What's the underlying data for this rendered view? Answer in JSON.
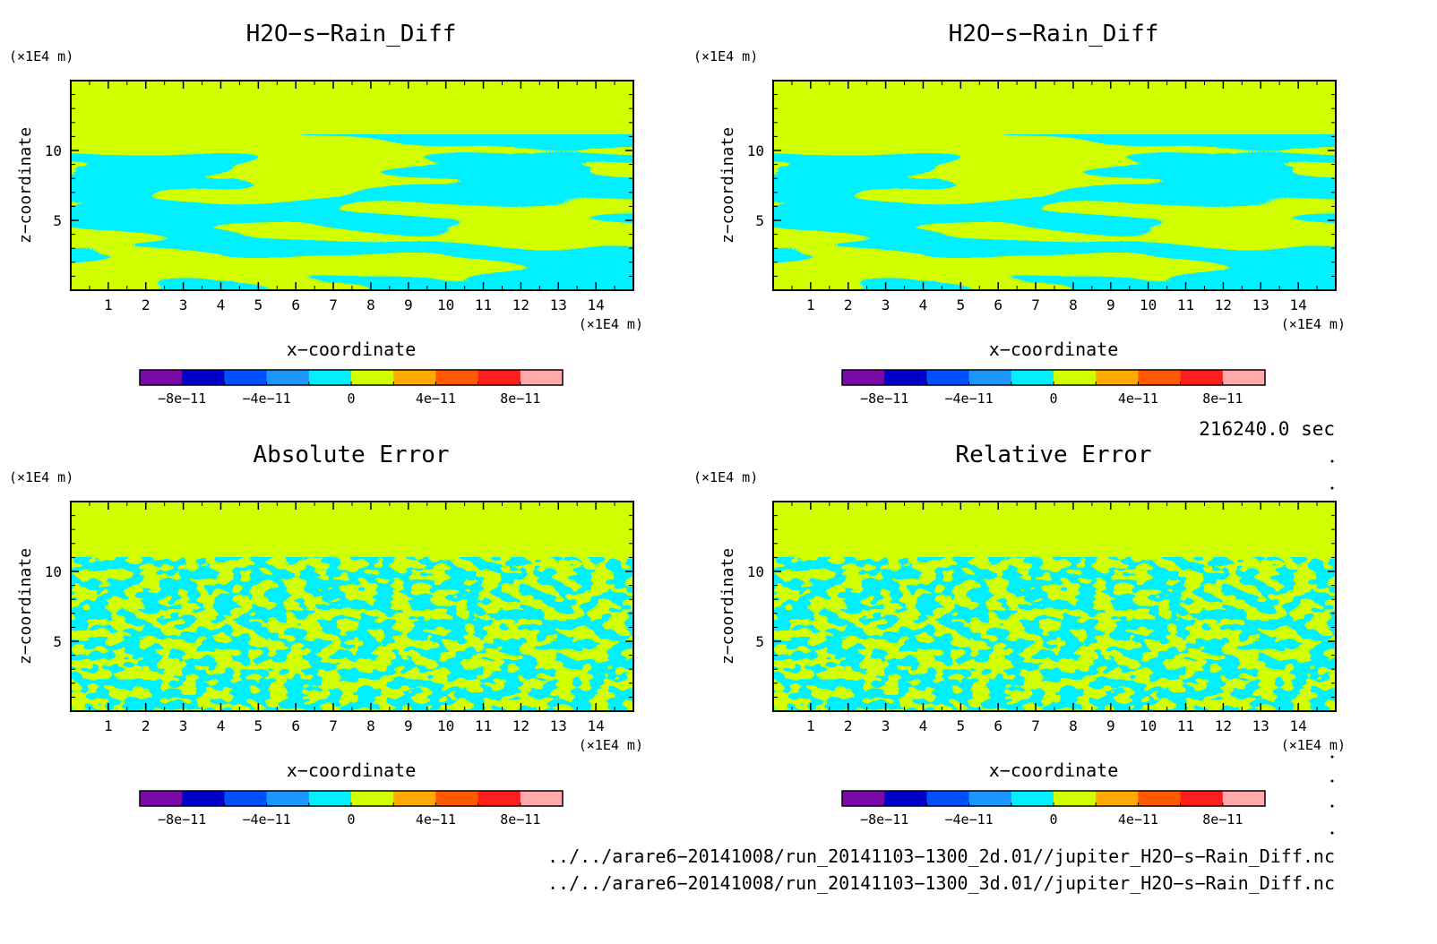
{
  "panels": [
    {
      "title": "H2O−s−Rain_Diff",
      "pattern": "smooth"
    },
    {
      "title": "H2O−s−Rain_Diff",
      "pattern": "smooth"
    },
    {
      "title": "Absolute Error",
      "pattern": "noisy"
    },
    {
      "title": "Relative Error",
      "pattern": "noisy"
    }
  ],
  "axes": {
    "x_label": "x−coordinate",
    "y_label": "z−coordinate",
    "x_unit": "(×1E4 m)",
    "y_unit": "(×1E4 m)",
    "x_ticks": [
      "1",
      "2",
      "3",
      "4",
      "5",
      "6",
      "7",
      "8",
      "9",
      "10",
      "11",
      "12",
      "13",
      "14"
    ],
    "y_ticks": [
      "5",
      "10"
    ]
  },
  "colorbar": {
    "colors": [
      "#7a0aa8",
      "#0000c8",
      "#0050ff",
      "#1e96ff",
      "#00f0ff",
      "#d2ff00",
      "#ffa800",
      "#ff5a00",
      "#ff1e1e",
      "#ffaaaa"
    ],
    "labels": [
      "−8e−11",
      "−4e−11",
      "0",
      "4e−11",
      "8e−11"
    ]
  },
  "time_label": "216240.0 sec",
  "file_paths": [
    "../../arare6−20141008/run_20141103−1300_2d.01//jupiter_H2O−s−Rain_Diff.nc",
    "../../arare6−20141008/run_20141103−1300_3d.01//jupiter_H2O−s−Rain_Diff.nc"
  ],
  "chart_data": [
    {
      "type": "heatmap",
      "title": "H2O−s−Rain_Diff",
      "xlabel": "x−coordinate",
      "ylabel": "z−coordinate",
      "xlim": [
        0,
        15
      ],
      "ylim": [
        0,
        15
      ],
      "x_unit": "(×1E4 m)",
      "y_unit": "(×1E4 m)",
      "colorbar_range": [
        -1e-10,
        1e-10
      ],
      "values_shown": [
        "0 (cyan band)",
        "0 to 2e−11 (yellow-green band)"
      ]
    },
    {
      "type": "heatmap",
      "title": "H2O−s−Rain_Diff",
      "xlabel": "x−coordinate",
      "ylabel": "z−coordinate",
      "xlim": [
        0,
        15
      ],
      "ylim": [
        0,
        15
      ],
      "x_unit": "(×1E4 m)",
      "y_unit": "(×1E4 m)",
      "colorbar_range": [
        -1e-10,
        1e-10
      ],
      "values_shown": [
        "0 (cyan band)",
        "0 to 2e−11 (yellow-green band)"
      ]
    },
    {
      "type": "heatmap",
      "title": "Absolute Error",
      "xlabel": "x−coordinate",
      "ylabel": "z−coordinate",
      "xlim": [
        0,
        15
      ],
      "ylim": [
        0,
        15
      ],
      "x_unit": "(×1E4 m)",
      "y_unit": "(×1E4 m)",
      "colorbar_range": [
        -1e-10,
        1e-10
      ],
      "values_shown": [
        "0 (cyan band)",
        "0 to 2e−11 (yellow-green band)"
      ]
    },
    {
      "type": "heatmap",
      "title": "Relative Error",
      "xlabel": "x−coordinate",
      "ylabel": "z−coordinate",
      "xlim": [
        0,
        15
      ],
      "ylim": [
        0,
        15
      ],
      "x_unit": "(×1E4 m)",
      "y_unit": "(×1E4 m)",
      "colorbar_range": [
        -1e-10,
        1e-10
      ],
      "values_shown": [
        "0 (cyan band)",
        "0 to 2e−11 (yellow-green band)"
      ]
    }
  ]
}
